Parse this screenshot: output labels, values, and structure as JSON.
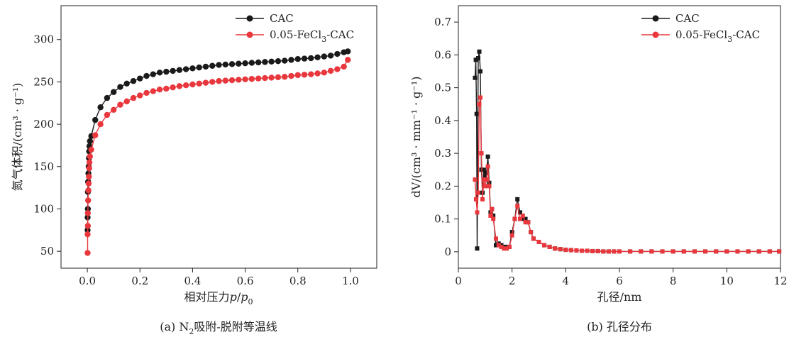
{
  "chart_data": [
    {
      "type": "line",
      "caption_prefix": "(a) N",
      "caption_sub": "2",
      "caption_suffix": "吸附-脱附等温线",
      "xlabel_prefix": "相对压力",
      "xlabel_p": "p",
      "xlabel_slash": "/",
      "xlabel_p0": "p",
      "xlabel_p0_sub": "0",
      "ylabel": "氮气体积/(cm³ · g⁻¹)",
      "xlim": [
        -0.1,
        1.1
      ],
      "ylim": [
        30,
        340
      ],
      "xticks": [
        0.0,
        0.2,
        0.4,
        0.6,
        0.8,
        1.0
      ],
      "xtick_labels": [
        "0.0",
        "0.2",
        "0.4",
        "0.6",
        "0.8",
        "1.0"
      ],
      "yticks": [
        50,
        100,
        150,
        200,
        250,
        300
      ],
      "ytick_labels": [
        "50",
        "100",
        "150",
        "200",
        "250",
        "300"
      ],
      "legend_position": "top-right",
      "series": [
        {
          "name": "CAC",
          "color": "#1a1a1a",
          "points": [
            [
              0.001,
              75
            ],
            [
              0.001,
              90
            ],
            [
              0.002,
              100
            ],
            [
              0.002,
              120
            ],
            [
              0.003,
              132
            ],
            [
              0.004,
              142
            ],
            [
              0.005,
              150
            ],
            [
              0.006,
              160
            ],
            [
              0.007,
              168
            ],
            [
              0.008,
              174
            ],
            [
              0.01,
              180
            ],
            [
              0.015,
              186
            ],
            [
              0.03,
              205
            ],
            [
              0.05,
              220
            ],
            [
              0.075,
              231
            ],
            [
              0.1,
              238
            ],
            [
              0.125,
              244
            ],
            [
              0.15,
              248
            ],
            [
              0.175,
              251
            ],
            [
              0.2,
              254
            ],
            [
              0.225,
              257
            ],
            [
              0.25,
              259
            ],
            [
              0.275,
              261
            ],
            [
              0.3,
              262
            ],
            [
              0.325,
              263
            ],
            [
              0.35,
              264
            ],
            [
              0.375,
              265
            ],
            [
              0.4,
              266
            ],
            [
              0.425,
              267
            ],
            [
              0.45,
              268
            ],
            [
              0.475,
              269
            ],
            [
              0.5,
              270
            ],
            [
              0.525,
              270.5
            ],
            [
              0.55,
              271
            ],
            [
              0.575,
              271.5
            ],
            [
              0.6,
              272
            ],
            [
              0.625,
              272.5
            ],
            [
              0.65,
              273
            ],
            [
              0.675,
              273.5
            ],
            [
              0.7,
              274
            ],
            [
              0.725,
              274.5
            ],
            [
              0.75,
              275
            ],
            [
              0.775,
              276
            ],
            [
              0.8,
              277
            ],
            [
              0.825,
              277.5
            ],
            [
              0.85,
              278
            ],
            [
              0.875,
              279
            ],
            [
              0.9,
              280
            ],
            [
              0.925,
              281
            ],
            [
              0.95,
              283
            ],
            [
              0.975,
              285
            ],
            [
              0.99,
              286
            ]
          ]
        },
        {
          "name": "0.05-FeCl₃-CAC",
          "name_prefix": "0.05-FeCl",
          "name_sub": "3",
          "name_suffix": "-CAC",
          "color": "#e8383d",
          "points": [
            [
              0.001,
              48
            ],
            [
              0.001,
              70
            ],
            [
              0.002,
              80
            ],
            [
              0.002,
              95
            ],
            [
              0.003,
              110
            ],
            [
              0.004,
              122
            ],
            [
              0.005,
              130
            ],
            [
              0.006,
              138
            ],
            [
              0.007,
              148
            ],
            [
              0.008,
              155
            ],
            [
              0.01,
              162
            ],
            [
              0.015,
              170
            ],
            [
              0.03,
              187
            ],
            [
              0.05,
              200
            ],
            [
              0.075,
              211
            ],
            [
              0.1,
              217
            ],
            [
              0.125,
              223
            ],
            [
              0.15,
              227
            ],
            [
              0.175,
              231
            ],
            [
              0.2,
              234
            ],
            [
              0.225,
              237
            ],
            [
              0.25,
              239
            ],
            [
              0.275,
              241
            ],
            [
              0.3,
              242
            ],
            [
              0.325,
              243.5
            ],
            [
              0.35,
              245
            ],
            [
              0.375,
              246
            ],
            [
              0.4,
              247
            ],
            [
              0.425,
              248
            ],
            [
              0.45,
              249
            ],
            [
              0.475,
              250
            ],
            [
              0.5,
              251
            ],
            [
              0.525,
              251.5
            ],
            [
              0.55,
              252
            ],
            [
              0.575,
              252.5
            ],
            [
              0.6,
              253
            ],
            [
              0.625,
              253.5
            ],
            [
              0.65,
              254
            ],
            [
              0.675,
              254.5
            ],
            [
              0.7,
              255
            ],
            [
              0.725,
              255.5
            ],
            [
              0.75,
              256
            ],
            [
              0.775,
              257
            ],
            [
              0.8,
              258
            ],
            [
              0.825,
              258.5
            ],
            [
              0.85,
              259
            ],
            [
              0.875,
              260
            ],
            [
              0.9,
              261
            ],
            [
              0.925,
              263
            ],
            [
              0.95,
              265
            ],
            [
              0.975,
              268
            ],
            [
              0.99,
              276
            ]
          ]
        }
      ]
    },
    {
      "type": "line",
      "caption": "(b) 孔径分布",
      "xlabel": "孔径/nm",
      "ylabel": "dV/(cm³ · mm⁻¹ · g⁻¹)",
      "xlim": [
        0,
        12
      ],
      "ylim": [
        -0.05,
        0.75
      ],
      "xticks": [
        0,
        2,
        4,
        6,
        8,
        10,
        12
      ],
      "xtick_labels": [
        "0",
        "2",
        "4",
        "6",
        "8",
        "10",
        "12"
      ],
      "yticks": [
        0,
        0.1,
        0.2,
        0.3,
        0.4,
        0.5,
        0.6,
        0.7
      ],
      "ytick_labels": [
        "0",
        "0.1",
        "0.2",
        "0.3",
        "0.4",
        "0.5",
        "0.6",
        "0.7"
      ],
      "legend_position": "top-right",
      "series": [
        {
          "name": "CAC",
          "color": "#1a1a1a",
          "points": [
            [
              0.62,
              0.53
            ],
            [
              0.65,
              0.585
            ],
            [
              0.68,
              0.42
            ],
            [
              0.7,
              0.01
            ],
            [
              0.74,
              0.59
            ],
            [
              0.78,
              0.61
            ],
            [
              0.82,
              0.55
            ],
            [
              0.86,
              0.25
            ],
            [
              0.9,
              0.18
            ],
            [
              0.95,
              0.25
            ],
            [
              1.0,
              0.23
            ],
            [
              1.05,
              0.24
            ],
            [
              1.1,
              0.29
            ],
            [
              1.15,
              0.21
            ],
            [
              1.2,
              0.12
            ],
            [
              1.25,
              0.13
            ],
            [
              1.3,
              0.11
            ],
            [
              1.4,
              0.02
            ],
            [
              1.5,
              0.025
            ],
            [
              1.6,
              0.02
            ],
            [
              1.7,
              0.015
            ],
            [
              1.8,
              0.015
            ],
            [
              1.9,
              0.015
            ],
            [
              2.0,
              0.06
            ],
            [
              2.1,
              0.1
            ],
            [
              2.2,
              0.16
            ],
            [
              2.3,
              0.12
            ],
            [
              2.4,
              0.1
            ],
            [
              2.5,
              0.1
            ],
            [
              2.6,
              0.09
            ],
            [
              2.7,
              0.06
            ],
            [
              2.8,
              0.04
            ],
            [
              3.0,
              0.03
            ],
            [
              3.2,
              0.02
            ],
            [
              3.4,
              0.015
            ],
            [
              3.6,
              0.01
            ],
            [
              3.8,
              0.008
            ],
            [
              4.0,
              0.006
            ],
            [
              4.2,
              0.005
            ],
            [
              4.4,
              0.004
            ],
            [
              4.6,
              0.003
            ],
            [
              4.8,
              0.003
            ],
            [
              5.0,
              0.002
            ],
            [
              5.2,
              0.002
            ],
            [
              5.4,
              0.001
            ],
            [
              5.6,
              0.001
            ],
            [
              5.8,
              0.001
            ],
            [
              6.0,
              0.001
            ],
            [
              6.4,
              0.001
            ],
            [
              6.8,
              0.001
            ],
            [
              7.2,
              0.001
            ],
            [
              7.6,
              0.001
            ],
            [
              8.0,
              0.001
            ],
            [
              8.4,
              0.001
            ],
            [
              8.8,
              0.001
            ],
            [
              9.2,
              0.001
            ],
            [
              9.6,
              0.001
            ],
            [
              10.0,
              0.001
            ],
            [
              10.4,
              0.001
            ],
            [
              10.8,
              0.001
            ],
            [
              11.2,
              0.001
            ],
            [
              11.6,
              0.001
            ],
            [
              11.95,
              0.001
            ]
          ]
        },
        {
          "name": "0.05-FeCl₃-CAC",
          "name_prefix": "0.05-FeCl",
          "name_sub": "3",
          "name_suffix": "-CAC",
          "color": "#e8383d",
          "points": [
            [
              0.62,
              0.22
            ],
            [
              0.66,
              0.16
            ],
            [
              0.7,
              0.12
            ],
            [
              0.74,
              0.18
            ],
            [
              0.78,
              0.45
            ],
            [
              0.82,
              0.47
            ],
            [
              0.86,
              0.3
            ],
            [
              0.9,
              0.16
            ],
            [
              0.95,
              0.22
            ],
            [
              1.0,
              0.2
            ],
            [
              1.05,
              0.22
            ],
            [
              1.1,
              0.26
            ],
            [
              1.15,
              0.2
            ],
            [
              1.2,
              0.11
            ],
            [
              1.25,
              0.13
            ],
            [
              1.3,
              0.1
            ],
            [
              1.4,
              0.04
            ],
            [
              1.5,
              0.02
            ],
            [
              1.6,
              0.015
            ],
            [
              1.7,
              0.01
            ],
            [
              1.8,
              0.01
            ],
            [
              1.9,
              0.015
            ],
            [
              2.0,
              0.05
            ],
            [
              2.1,
              0.1
            ],
            [
              2.2,
              0.14
            ],
            [
              2.3,
              0.1
            ],
            [
              2.4,
              0.11
            ],
            [
              2.5,
              0.09
            ],
            [
              2.6,
              0.09
            ],
            [
              2.7,
              0.06
            ],
            [
              2.8,
              0.04
            ],
            [
              3.0,
              0.03
            ],
            [
              3.2,
              0.02
            ],
            [
              3.4,
              0.015
            ],
            [
              3.6,
              0.01
            ],
            [
              3.8,
              0.008
            ],
            [
              4.0,
              0.006
            ],
            [
              4.2,
              0.005
            ],
            [
              4.4,
              0.004
            ],
            [
              4.6,
              0.003
            ],
            [
              4.8,
              0.003
            ],
            [
              5.0,
              0.002
            ],
            [
              5.2,
              0.002
            ],
            [
              5.4,
              0.001
            ],
            [
              5.6,
              0.001
            ],
            [
              5.8,
              0.001
            ],
            [
              6.0,
              0.001
            ],
            [
              6.4,
              0.001
            ],
            [
              6.8,
              0.001
            ],
            [
              7.2,
              0.001
            ],
            [
              7.6,
              0.001
            ],
            [
              8.0,
              0.001
            ],
            [
              8.4,
              0.001
            ],
            [
              8.8,
              0.001
            ],
            [
              9.2,
              0.001
            ],
            [
              9.6,
              0.001
            ],
            [
              10.0,
              0.001
            ],
            [
              10.4,
              0.001
            ],
            [
              10.8,
              0.001
            ],
            [
              11.2,
              0.001
            ],
            [
              11.6,
              0.001
            ],
            [
              11.95,
              0.001
            ]
          ]
        }
      ]
    }
  ]
}
